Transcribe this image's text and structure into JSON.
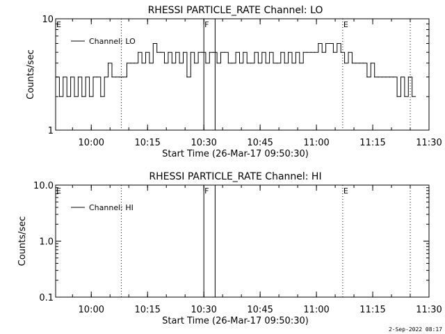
{
  "footer": "2-Sep-2022 08:17",
  "chart_data": [
    {
      "type": "line",
      "title": "RHESSI PARTICLE_RATE Channel: LO",
      "xlabel": "Start Time (26-Mar-17 09:50:30)",
      "ylabel": "Counts/sec",
      "yscale": "log",
      "ylim": [
        1,
        10
      ],
      "yticks": [
        1,
        10
      ],
      "ytick_labels": [
        "1",
        "10"
      ],
      "xlim": [
        "09:50:30",
        "11:30:00"
      ],
      "xticks": [
        "10:00",
        "10:15",
        "10:30",
        "10:45",
        "11:00",
        "11:15",
        "11:30"
      ],
      "legend": "top-left",
      "series": [
        {
          "name": "Channel: LO",
          "color": "#000000",
          "x": [
            "09:50:30",
            "09:51:30",
            "09:52:30",
            "09:53:30",
            "09:54:30",
            "09:55:30",
            "09:56:30",
            "09:57:30",
            "09:58:30",
            "09:59:30",
            "10:00:30",
            "10:01:30",
            "10:02:30",
            "10:03:30",
            "10:04:30",
            "10:05:30",
            "10:06:30",
            "10:07:30",
            "10:08:30",
            "10:09:30",
            "10:10:30",
            "10:11:30",
            "10:12:30",
            "10:13:30",
            "10:14:30",
            "10:15:30",
            "10:16:30",
            "10:17:30",
            "10:18:30",
            "10:19:30",
            "10:20:30",
            "10:21:30",
            "10:22:30",
            "10:23:30",
            "10:24:30",
            "10:25:30",
            "10:26:30",
            "10:27:30",
            "10:28:30",
            "10:29:30",
            "10:30:30",
            "10:31:30",
            "10:32:30",
            "10:33:30",
            "10:34:30",
            "10:35:30",
            "10:36:30",
            "10:37:30",
            "10:38:30",
            "10:39:30",
            "10:40:30",
            "10:41:30",
            "10:42:30",
            "10:43:30",
            "10:44:30",
            "10:45:30",
            "10:46:30",
            "10:47:30",
            "10:48:30",
            "10:49:30",
            "10:50:30",
            "10:51:30",
            "10:52:30",
            "10:53:30",
            "10:54:30",
            "10:55:30",
            "10:56:30",
            "10:57:30",
            "10:58:30",
            "10:59:30",
            "11:00:30",
            "11:01:30",
            "11:02:30",
            "11:03:30",
            "11:04:30",
            "11:05:30",
            "11:06:30",
            "11:07:30",
            "11:08:30",
            "11:09:30",
            "11:10:30",
            "11:11:30",
            "11:12:30",
            "11:13:30",
            "11:14:30",
            "11:15:30",
            "11:16:30",
            "11:17:30",
            "11:18:30",
            "11:19:30",
            "11:20:30",
            "11:21:30",
            "11:22:30",
            "11:23:30",
            "11:24:30",
            "11:25:30"
          ],
          "values": [
            3,
            2,
            3,
            2,
            3,
            2,
            3,
            2,
            3,
            2,
            3,
            3,
            2,
            3,
            4,
            3,
            3,
            3,
            3,
            4,
            4,
            4,
            5,
            4,
            5,
            4,
            6,
            5,
            5,
            4,
            5,
            4,
            5,
            4,
            5,
            3,
            5,
            4,
            5,
            5,
            4,
            5,
            5,
            4,
            5,
            5,
            4,
            4,
            5,
            4,
            5,
            4,
            4,
            5,
            4,
            5,
            4,
            5,
            4,
            4,
            5,
            4,
            5,
            4,
            5,
            4,
            5,
            5,
            5,
            5,
            6,
            5,
            6,
            6,
            5,
            6,
            5,
            4,
            5,
            4,
            4,
            4,
            4,
            3,
            4,
            3,
            3,
            3,
            3,
            3,
            3,
            2,
            3,
            2,
            3,
            2
          ]
        }
      ],
      "annotations": [
        {
          "label": "E",
          "time": "09:50:30",
          "style": "dotted"
        },
        {
          "label": "",
          "time": "10:08:00",
          "style": "dotted"
        },
        {
          "label": "F",
          "time": "10:30:00",
          "style": "solid"
        },
        {
          "label": "",
          "time": "10:33:00",
          "style": "solid"
        },
        {
          "label": "E",
          "time": "11:07:00",
          "style": "dotted"
        },
        {
          "label": "",
          "time": "11:25:00",
          "style": "dotted"
        }
      ]
    },
    {
      "type": "line",
      "title": "RHESSI PARTICLE_RATE Channel: HI",
      "xlabel": "Start Time (26-Mar-17 09:50:30)",
      "ylabel": "Counts/sec",
      "yscale": "log",
      "ylim": [
        0.1,
        10
      ],
      "yticks": [
        0.1,
        1,
        10
      ],
      "ytick_labels": [
        "0.1",
        "1.0",
        "10.0"
      ],
      "xlim": [
        "09:50:30",
        "11:30:00"
      ],
      "xticks": [
        "10:00",
        "10:15",
        "10:30",
        "10:45",
        "11:00",
        "11:15",
        "11:30"
      ],
      "legend": "top-left",
      "series": [
        {
          "name": "Channel: HI",
          "color": "#000000",
          "x": [],
          "values": []
        }
      ],
      "annotations": [
        {
          "label": "E",
          "time": "09:50:30",
          "style": "dotted"
        },
        {
          "label": "",
          "time": "10:08:00",
          "style": "dotted"
        },
        {
          "label": "F",
          "time": "10:30:00",
          "style": "solid"
        },
        {
          "label": "",
          "time": "10:33:00",
          "style": "solid"
        },
        {
          "label": "E",
          "time": "11:07:00",
          "style": "dotted"
        },
        {
          "label": "",
          "time": "11:25:00",
          "style": "dotted"
        }
      ]
    }
  ]
}
